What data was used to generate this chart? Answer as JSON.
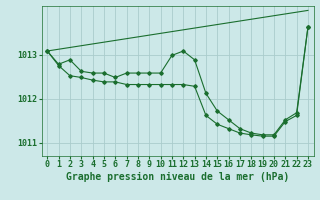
{
  "title": "Graphe pression niveau de la mer (hPa)",
  "bg_color": "#cce8e8",
  "grid_color": "#aacccc",
  "line_color": "#1a6e2e",
  "x_labels": [
    "0",
    "1",
    "2",
    "3",
    "4",
    "5",
    "6",
    "7",
    "8",
    "9",
    "10",
    "11",
    "12",
    "13",
    "14",
    "15",
    "16",
    "17",
    "18",
    "19",
    "20",
    "21",
    "22",
    "23"
  ],
  "series_straight": [
    1013.08,
    1013.12,
    1013.16,
    1013.2,
    1013.24,
    1013.28,
    1013.32,
    1013.36,
    1013.4,
    1013.44,
    1013.48,
    1013.52,
    1013.56,
    1013.6,
    1013.64,
    1013.68,
    1013.72,
    1013.76,
    1013.8,
    1013.84,
    1013.88,
    1013.92,
    1013.96,
    1014.0
  ],
  "series_wavy": [
    1013.08,
    1012.78,
    1012.88,
    1012.62,
    1012.58,
    1012.58,
    1012.48,
    1012.58,
    1012.58,
    1012.58,
    1012.58,
    1012.98,
    1013.08,
    1012.88,
    1012.12,
    1011.72,
    1011.52,
    1011.32,
    1011.22,
    1011.18,
    1011.18,
    1011.52,
    1011.68,
    1013.62
  ],
  "series_mid": [
    1013.08,
    1012.75,
    1012.52,
    1012.48,
    1012.42,
    1012.38,
    1012.38,
    1012.32,
    1012.32,
    1012.32,
    1012.32,
    1012.32,
    1012.32,
    1012.28,
    1011.62,
    1011.42,
    1011.32,
    1011.22,
    1011.18,
    1011.15,
    1011.15,
    1011.48,
    1011.62,
    1013.62
  ],
  "ylim": [
    1010.7,
    1014.1
  ],
  "yticks": [
    1011,
    1012,
    1013
  ],
  "tick_fontsize": 6,
  "title_fontsize": 7
}
